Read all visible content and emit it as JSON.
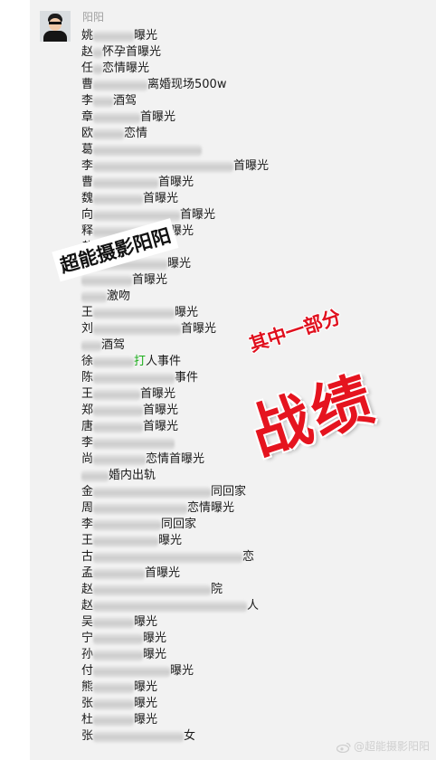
{
  "chat": {
    "sender_name": "阳阳",
    "lines": [
      {
        "prefix": "姚",
        "suffix": "曝光",
        "green": ""
      },
      {
        "prefix": "赵",
        "suffix": "怀孕首曝光",
        "green": ""
      },
      {
        "prefix": "任",
        "suffix": "恋情曝光",
        "green": ""
      },
      {
        "prefix": "曹",
        "suffix": "离婚现场500w",
        "green": ""
      },
      {
        "prefix": "李",
        "suffix": "酒驾",
        "green": ""
      },
      {
        "prefix": "章",
        "suffix": "首曝光",
        "green": ""
      },
      {
        "prefix": "欧",
        "suffix": "恋情",
        "green": ""
      },
      {
        "prefix": "葛",
        "suffix": "",
        "green": ""
      },
      {
        "prefix": "李",
        "suffix": "首曝光",
        "green": ""
      },
      {
        "prefix": "曹",
        "suffix": "首曝光",
        "green": ""
      },
      {
        "prefix": "魏",
        "suffix": "首曝光",
        "green": ""
      },
      {
        "prefix": "向",
        "suffix": "首曝光",
        "green": ""
      },
      {
        "prefix": "释",
        "suffix": "首曝光",
        "green": ""
      },
      {
        "prefix": "黄",
        "suffix": "",
        "green": ""
      },
      {
        "prefix": "",
        "suffix": "曝光",
        "green": ""
      },
      {
        "prefix": "",
        "suffix": "首曝光",
        "green": ""
      },
      {
        "prefix": "",
        "suffix": "激吻",
        "green": ""
      },
      {
        "prefix": "王",
        "suffix": "曝光",
        "green": ""
      },
      {
        "prefix": "刘",
        "suffix": "首曝光",
        "green": ""
      },
      {
        "prefix": "",
        "suffix": "酒驾",
        "green": ""
      },
      {
        "prefix": "徐",
        "suffix": "人事件",
        "green": "打"
      },
      {
        "prefix": "陈",
        "suffix": "事件",
        "green": ""
      },
      {
        "prefix": "王",
        "suffix": "首曝光",
        "green": ""
      },
      {
        "prefix": "郑",
        "suffix": "首曝光",
        "green": ""
      },
      {
        "prefix": "唐",
        "suffix": "首曝光",
        "green": ""
      },
      {
        "prefix": "李",
        "suffix": "",
        "green": ""
      },
      {
        "prefix": "尚",
        "suffix": "恋情首曝光",
        "green": ""
      },
      {
        "prefix": "",
        "suffix": "婚内出轨",
        "green": ""
      },
      {
        "prefix": "金",
        "suffix": "同回家",
        "green": ""
      },
      {
        "prefix": "周",
        "suffix": "恋情曝光",
        "green": ""
      },
      {
        "prefix": "李",
        "suffix": "同回家",
        "green": ""
      },
      {
        "prefix": "王",
        "suffix": "曝光",
        "green": ""
      },
      {
        "prefix": "古",
        "suffix": "恋",
        "green": ""
      },
      {
        "prefix": "孟",
        "suffix": "首曝光",
        "green": ""
      },
      {
        "prefix": "赵",
        "suffix": "院",
        "green": ""
      },
      {
        "prefix": "赵",
        "suffix": "人",
        "green": ""
      },
      {
        "prefix": "吴",
        "suffix": "曝光",
        "green": ""
      },
      {
        "prefix": "宁",
        "suffix": "曝光",
        "green": ""
      },
      {
        "prefix": "孙",
        "suffix": "曝光",
        "green": ""
      },
      {
        "prefix": "付",
        "suffix": "曝光",
        "green": ""
      },
      {
        "prefix": "熊",
        "suffix": "曝光",
        "green": ""
      },
      {
        "prefix": "张",
        "suffix": "曝光",
        "green": ""
      },
      {
        "prefix": "杜",
        "suffix": "曝光",
        "green": ""
      },
      {
        "prefix": "张",
        "suffix": "女",
        "green": ""
      }
    ]
  },
  "overlay": {
    "photo_stamp": "超能摄影阳阳",
    "caption_small": "其中一部分",
    "caption_big": "战绩",
    "watermark": "@超能摄影阳阳"
  },
  "colors": {
    "caption_red": "#e5141f",
    "panel_bg": "#f2f2f2",
    "green_text": "#1aad19"
  }
}
